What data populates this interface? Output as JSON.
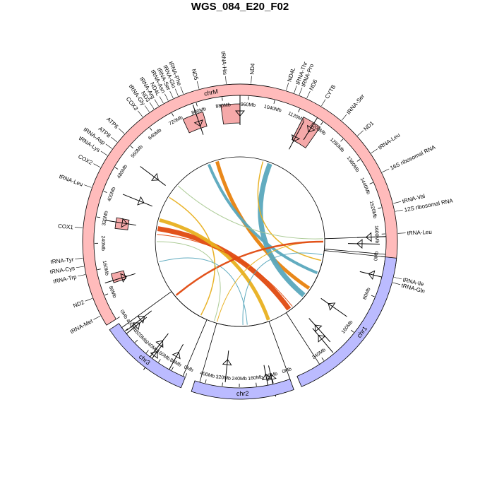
{
  "chart_data": {
    "type": "circos",
    "title": "WGS_084_E20_F02",
    "chromosomes": [
      {
        "name": "chrM",
        "color": "#FFBBBB",
        "start_deg": 238,
        "end_deg": 460,
        "max_mb": 1700,
        "ticks": [
          "0Mb",
          "80Mb",
          "160Mb",
          "240Mb",
          "320Mb",
          "400Mb",
          "480Mb",
          "560Mb",
          "640Mb",
          "720Mb",
          "800Mb",
          "880Mb",
          "960Mb",
          "1040Mb",
          "1120Mb",
          "1200Mb",
          "1280Mb",
          "1360Mb",
          "1440Mb",
          "1520Mb",
          "1600Mb"
        ]
      },
      {
        "name": "chr1",
        "color": "#BBBBFF",
        "start_deg": 96,
        "end_deg": 157,
        "max_mb": 300,
        "ticks": [
          "0Mb",
          "80Mb",
          "160Mb",
          "240Mb"
        ]
      },
      {
        "name": "chr2",
        "color": "#BBBBFF",
        "start_deg": 160,
        "end_deg": 198,
        "max_mb": 450,
        "ticks": [
          "0Mb",
          "80Mb",
          "160Mb",
          "240Mb",
          "320Mb",
          "400Mb"
        ]
      },
      {
        "name": "chr3",
        "color": "#BBBBFF",
        "start_deg": 202,
        "end_deg": 236,
        "max_mb": 450,
        "ticks": [
          "0Mb",
          "80Mb",
          "160Mb",
          "240Mb",
          "320Mb",
          "400Mb"
        ]
      }
    ],
    "genes": [
      {
        "label": "tRNA-Met",
        "deg": 242
      },
      {
        "label": "ND2",
        "deg": 249
      },
      {
        "label": "tRNA-Trp",
        "deg": 258
      },
      {
        "label": "tRNA-Cys",
        "deg": 261
      },
      {
        "label": "tRNA-Tyr",
        "deg": 264
      },
      {
        "label": "COX1",
        "deg": 275
      },
      {
        "label": "tRNA-Leu",
        "deg": 290
      },
      {
        "label": "COX2",
        "deg": 298
      },
      {
        "label": "tRNA-Lys",
        "deg": 303
      },
      {
        "label": "tRNA-Asp",
        "deg": 306
      },
      {
        "label": "ATP8",
        "deg": 309
      },
      {
        "label": "ATP6",
        "deg": 313
      },
      {
        "label": "COX3",
        "deg": 322
      },
      {
        "label": "tRNA-Gly",
        "deg": 325
      },
      {
        "label": "ND3",
        "deg": 327
      },
      {
        "label": "tRNA-Arg",
        "deg": 329
      },
      {
        "label": "ND4L",
        "deg": 331
      },
      {
        "label": "tRNA-Asn",
        "deg": 333
      },
      {
        "label": "tRNA-Ser",
        "deg": 335
      },
      {
        "label": "tRNA-Glu",
        "deg": 337
      },
      {
        "label": "tRNA-Phe",
        "deg": 339
      },
      {
        "label": "ND5",
        "deg": 345
      },
      {
        "label": "tRNA-His",
        "deg": 355
      },
      {
        "label": "ND4",
        "deg": 364
      },
      {
        "label": "ND4L",
        "deg": 377
      },
      {
        "label": "tRNA-Thr",
        "deg": 380
      },
      {
        "label": "tRNA-Pro",
        "deg": 382
      },
      {
        "label": "ND6",
        "deg": 385
      },
      {
        "label": "CYTB",
        "deg": 391
      },
      {
        "label": "tRNA-Ser",
        "deg": 400
      },
      {
        "label": "ND1",
        "deg": 408
      },
      {
        "label": "tRNA-Leu",
        "deg": 416
      },
      {
        "label": "16S ribosomal RNA",
        "deg": 424
      },
      {
        "label": "tRNA-Val",
        "deg": 436
      },
      {
        "label": "12S ribosomal RNA",
        "deg": 439
      },
      {
        "label": "tRNA-Leu",
        "deg": 447
      },
      {
        "label": "tRNA-Ile",
        "deg": 463
      },
      {
        "label": "tRNA-Gln",
        "deg": 465
      }
    ],
    "links": [
      {
        "from_deg": 344,
        "to_deg": 124,
        "color": "#E8820E",
        "width": 5
      },
      {
        "from_deg": 338,
        "to_deg": 112,
        "color": "#5AA8BD",
        "width": 4
      },
      {
        "from_deg": 381,
        "to_deg": 130,
        "color": "#5AA8BD",
        "width": 7
      },
      {
        "from_deg": 376,
        "to_deg": 103,
        "color": "#E8B020",
        "width": 1.5
      },
      {
        "from_deg": 279,
        "to_deg": 144,
        "color": "#E04A10",
        "width": 7
      },
      {
        "from_deg": 285,
        "to_deg": 160,
        "color": "#E8B020",
        "width": 5
      },
      {
        "from_deg": 312,
        "to_deg": 88,
        "color": "#A8C890",
        "width": 1
      },
      {
        "from_deg": 302,
        "to_deg": 208,
        "color": "#E8B020",
        "width": 1.5
      },
      {
        "from_deg": 275,
        "to_deg": 141,
        "color": "#E04A10",
        "width": 1
      },
      {
        "from_deg": 256,
        "to_deg": 175,
        "color": "#5AA8BD",
        "width": 1
      },
      {
        "from_deg": 450,
        "to_deg": 196,
        "color": "#E8B020",
        "width": 1
      },
      {
        "from_deg": 90,
        "to_deg": 230,
        "color": "#E04A10",
        "width": 2.5
      },
      {
        "from_deg": 99,
        "to_deg": 178,
        "color": "#5AA8BD",
        "width": 1
      },
      {
        "from_deg": 270,
        "to_deg": 198,
        "color": "#A8C890",
        "width": 1
      }
    ],
    "tracks": [
      {
        "chr": "chrM",
        "start_deg": 360,
        "end_deg": 352,
        "r_in": 168,
        "r_out": 195,
        "color": "#F5A9A9",
        "kind": "rect"
      },
      {
        "chr": "chrM",
        "start_deg": 344,
        "end_deg": 335,
        "r_in": 170,
        "r_out": 191,
        "color": "#F5A9A9",
        "kind": "rect"
      },
      {
        "chr": "chrM",
        "start_deg": 395,
        "end_deg": 387,
        "r_in": 162,
        "r_out": 198,
        "color": "#F5A9A9",
        "kind": "rect"
      },
      {
        "chr": "chrM",
        "start_deg": 281,
        "end_deg": 276,
        "r_in": 160,
        "r_out": 178,
        "color": "#F5A9A9",
        "kind": "rect"
      },
      {
        "chr": "chrM",
        "start_deg": 256,
        "end_deg": 252,
        "r_in": 170,
        "r_out": 188,
        "color": "#F5A9A9",
        "kind": "rect"
      },
      {
        "chr": "chrM",
        "start_deg": 455,
        "end_deg": 448,
        "r_in": 120,
        "r_out": 208,
        "color": "#ffffff",
        "kind": "box"
      },
      {
        "chr": "chr1",
        "start_deg": 147,
        "end_deg": 96,
        "r_in": 120,
        "r_out": 208,
        "color": "#ffffff",
        "kind": "box"
      },
      {
        "chr": "chr2",
        "start_deg": 196,
        "end_deg": 160,
        "r_in": 120,
        "r_out": 208,
        "color": "#ffffff",
        "kind": "box"
      },
      {
        "chr": "chr3",
        "start_deg": 234,
        "end_deg": 203,
        "r_in": 120,
        "r_out": 208,
        "color": "#ffffff",
        "kind": "box"
      }
    ],
    "markers": [
      {
        "deg": 360,
        "r": 185
      },
      {
        "deg": 341,
        "r": 180
      },
      {
        "deg": 392,
        "r": 190
      },
      {
        "deg": 388,
        "r": 168
      },
      {
        "deg": 307,
        "r": 152
      },
      {
        "deg": 292,
        "r": 154
      },
      {
        "deg": 279,
        "r": 169
      },
      {
        "deg": 253,
        "r": 175
      },
      {
        "deg": 448,
        "r": 186
      },
      {
        "deg": 451,
        "r": 173
      },
      {
        "deg": 104,
        "r": 195
      },
      {
        "deg": 125,
        "r": 160
      },
      {
        "deg": 138,
        "r": 166
      },
      {
        "deg": 140,
        "r": 180
      },
      {
        "deg": 169,
        "r": 198
      },
      {
        "deg": 186,
        "r": 175
      },
      {
        "deg": 167,
        "r": 200
      },
      {
        "deg": 217,
        "r": 202
      },
      {
        "deg": 209,
        "r": 186
      },
      {
        "deg": 218,
        "r": 185
      },
      {
        "deg": 231,
        "r": 190
      },
      {
        "deg": 232,
        "r": 179
      }
    ]
  }
}
